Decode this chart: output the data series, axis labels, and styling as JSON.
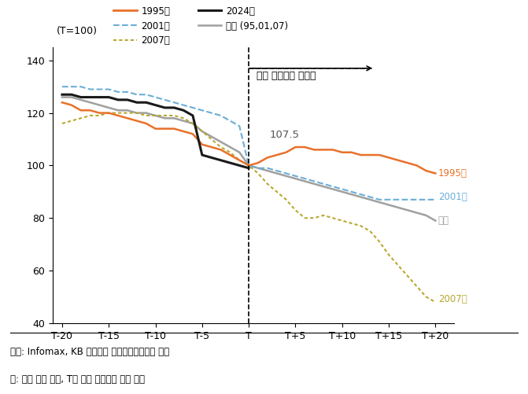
{
  "ylabel_label": "(T=100)",
  "xlabel_ticks": [
    "T-20",
    "T-15",
    "T-10",
    "T-5",
    "T",
    "T+5",
    "T+10",
    "T+15",
    "T+20"
  ],
  "xtick_positions": [
    -20,
    -15,
    -10,
    -5,
    0,
    5,
    10,
    15,
    20
  ],
  "ylim": [
    40,
    145
  ],
  "yticks": [
    40,
    60,
    80,
    100,
    120,
    140
  ],
  "source_text": "자료: Infomax, KB 국민은행 자본시장사업그룹 추정",
  "note_text": "주: 주간 평균 기준, T는 연준 금리인하 시작 시점",
  "annotation_text": "연준 금리인하 사이클",
  "annotation_value": "107.5",
  "leg_1995": "1995년",
  "leg_2001": "2001년",
  "leg_2007": "2007년",
  "leg_2024": "2024년",
  "leg_avg": "평균 (95,01,07)",
  "label_1995": "1995년",
  "label_2001": "2001년",
  "label_avg": "평균",
  "label_2007": "2007년",
  "colors": {
    "y1995": "#E8712A",
    "y2007": "#B8A830",
    "avg": "#A0A0A0",
    "y2001": "#6BAED6",
    "y2024": "#1A1A1A"
  },
  "x": [
    -20,
    -19,
    -18,
    -17,
    -16,
    -15,
    -14,
    -13,
    -12,
    -11,
    -10,
    -9,
    -8,
    -7,
    -6,
    -5,
    -4,
    -3,
    -2,
    -1,
    0,
    1,
    2,
    3,
    4,
    5,
    6,
    7,
    8,
    9,
    10,
    11,
    12,
    13,
    14,
    15,
    16,
    17,
    18,
    19,
    20
  ],
  "y1995": [
    124,
    123,
    121,
    121,
    120,
    120,
    119,
    118,
    117,
    116,
    114,
    114,
    114,
    113,
    112,
    108,
    107,
    106,
    104,
    102,
    100,
    101,
    103,
    104,
    105,
    107,
    107,
    106,
    106,
    106,
    105,
    105,
    104,
    104,
    104,
    103,
    102,
    101,
    100,
    98,
    97
  ],
  "y2007": [
    116,
    117,
    118,
    119,
    119,
    120,
    120,
    120,
    120,
    119,
    119,
    119,
    119,
    118,
    116,
    113,
    110,
    107,
    105,
    102,
    100,
    97,
    93,
    90,
    87,
    83,
    80,
    80,
    81,
    80,
    79,
    78,
    77,
    75,
    71,
    66,
    62,
    58,
    54,
    50,
    48
  ],
  "avg": [
    126,
    126,
    125,
    124,
    123,
    122,
    121,
    121,
    120,
    120,
    119,
    118,
    118,
    117,
    116,
    113,
    111,
    109,
    107,
    105,
    100,
    99,
    98,
    97,
    96,
    95,
    94,
    93,
    92,
    91,
    90,
    89,
    88,
    87,
    86,
    85,
    84,
    83,
    82,
    81,
    79
  ],
  "y2001": [
    130,
    130,
    130,
    129,
    129,
    129,
    128,
    128,
    127,
    127,
    126,
    125,
    124,
    123,
    122,
    121,
    120,
    119,
    117,
    115,
    100,
    99,
    99,
    98,
    97,
    96,
    95,
    94,
    93,
    92,
    91,
    90,
    89,
    88,
    87,
    87,
    87,
    87,
    87,
    87,
    87
  ],
  "y2024": [
    127,
    127,
    126,
    126,
    126,
    126,
    125,
    125,
    124,
    124,
    123,
    122,
    122,
    121,
    119,
    104,
    103,
    102,
    101,
    100,
    99,
    null,
    null,
    null,
    null,
    null,
    null,
    null,
    null,
    null,
    null,
    null,
    null,
    null,
    null,
    null,
    null,
    null,
    null,
    null,
    null
  ]
}
